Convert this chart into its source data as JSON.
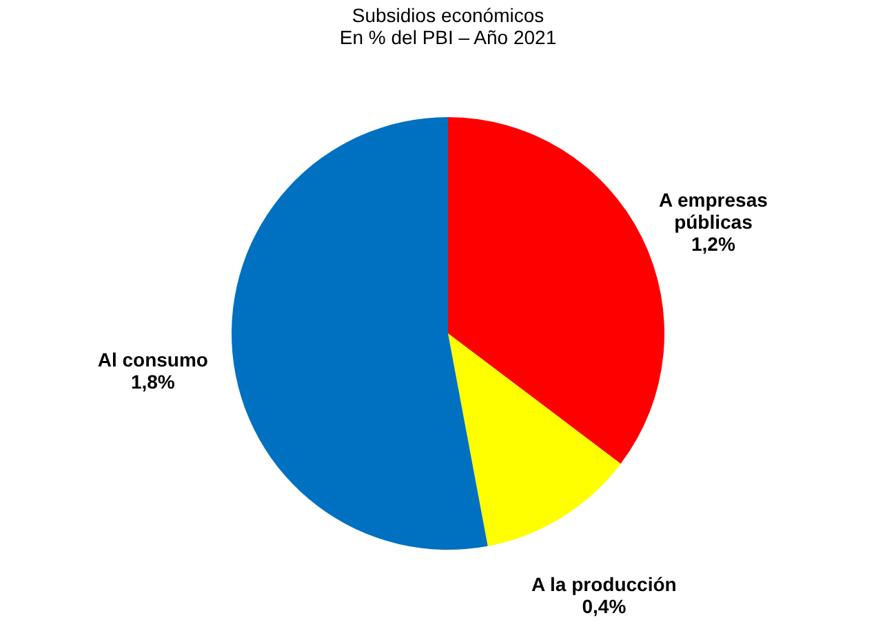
{
  "chart_data": {
    "type": "pie",
    "title": [
      "Subsidios económicos",
      "En % del PBI – Año 2021"
    ],
    "categories": [
      "A empresas públicas",
      "A la producción",
      "Al consumo"
    ],
    "values": [
      1.2,
      0.4,
      1.8
    ],
    "colors": [
      "#ff0000",
      "#ffff00",
      "#0070c0"
    ],
    "value_labels": [
      "1,2%",
      "0,4%",
      "1,8%"
    ],
    "legend": false
  }
}
